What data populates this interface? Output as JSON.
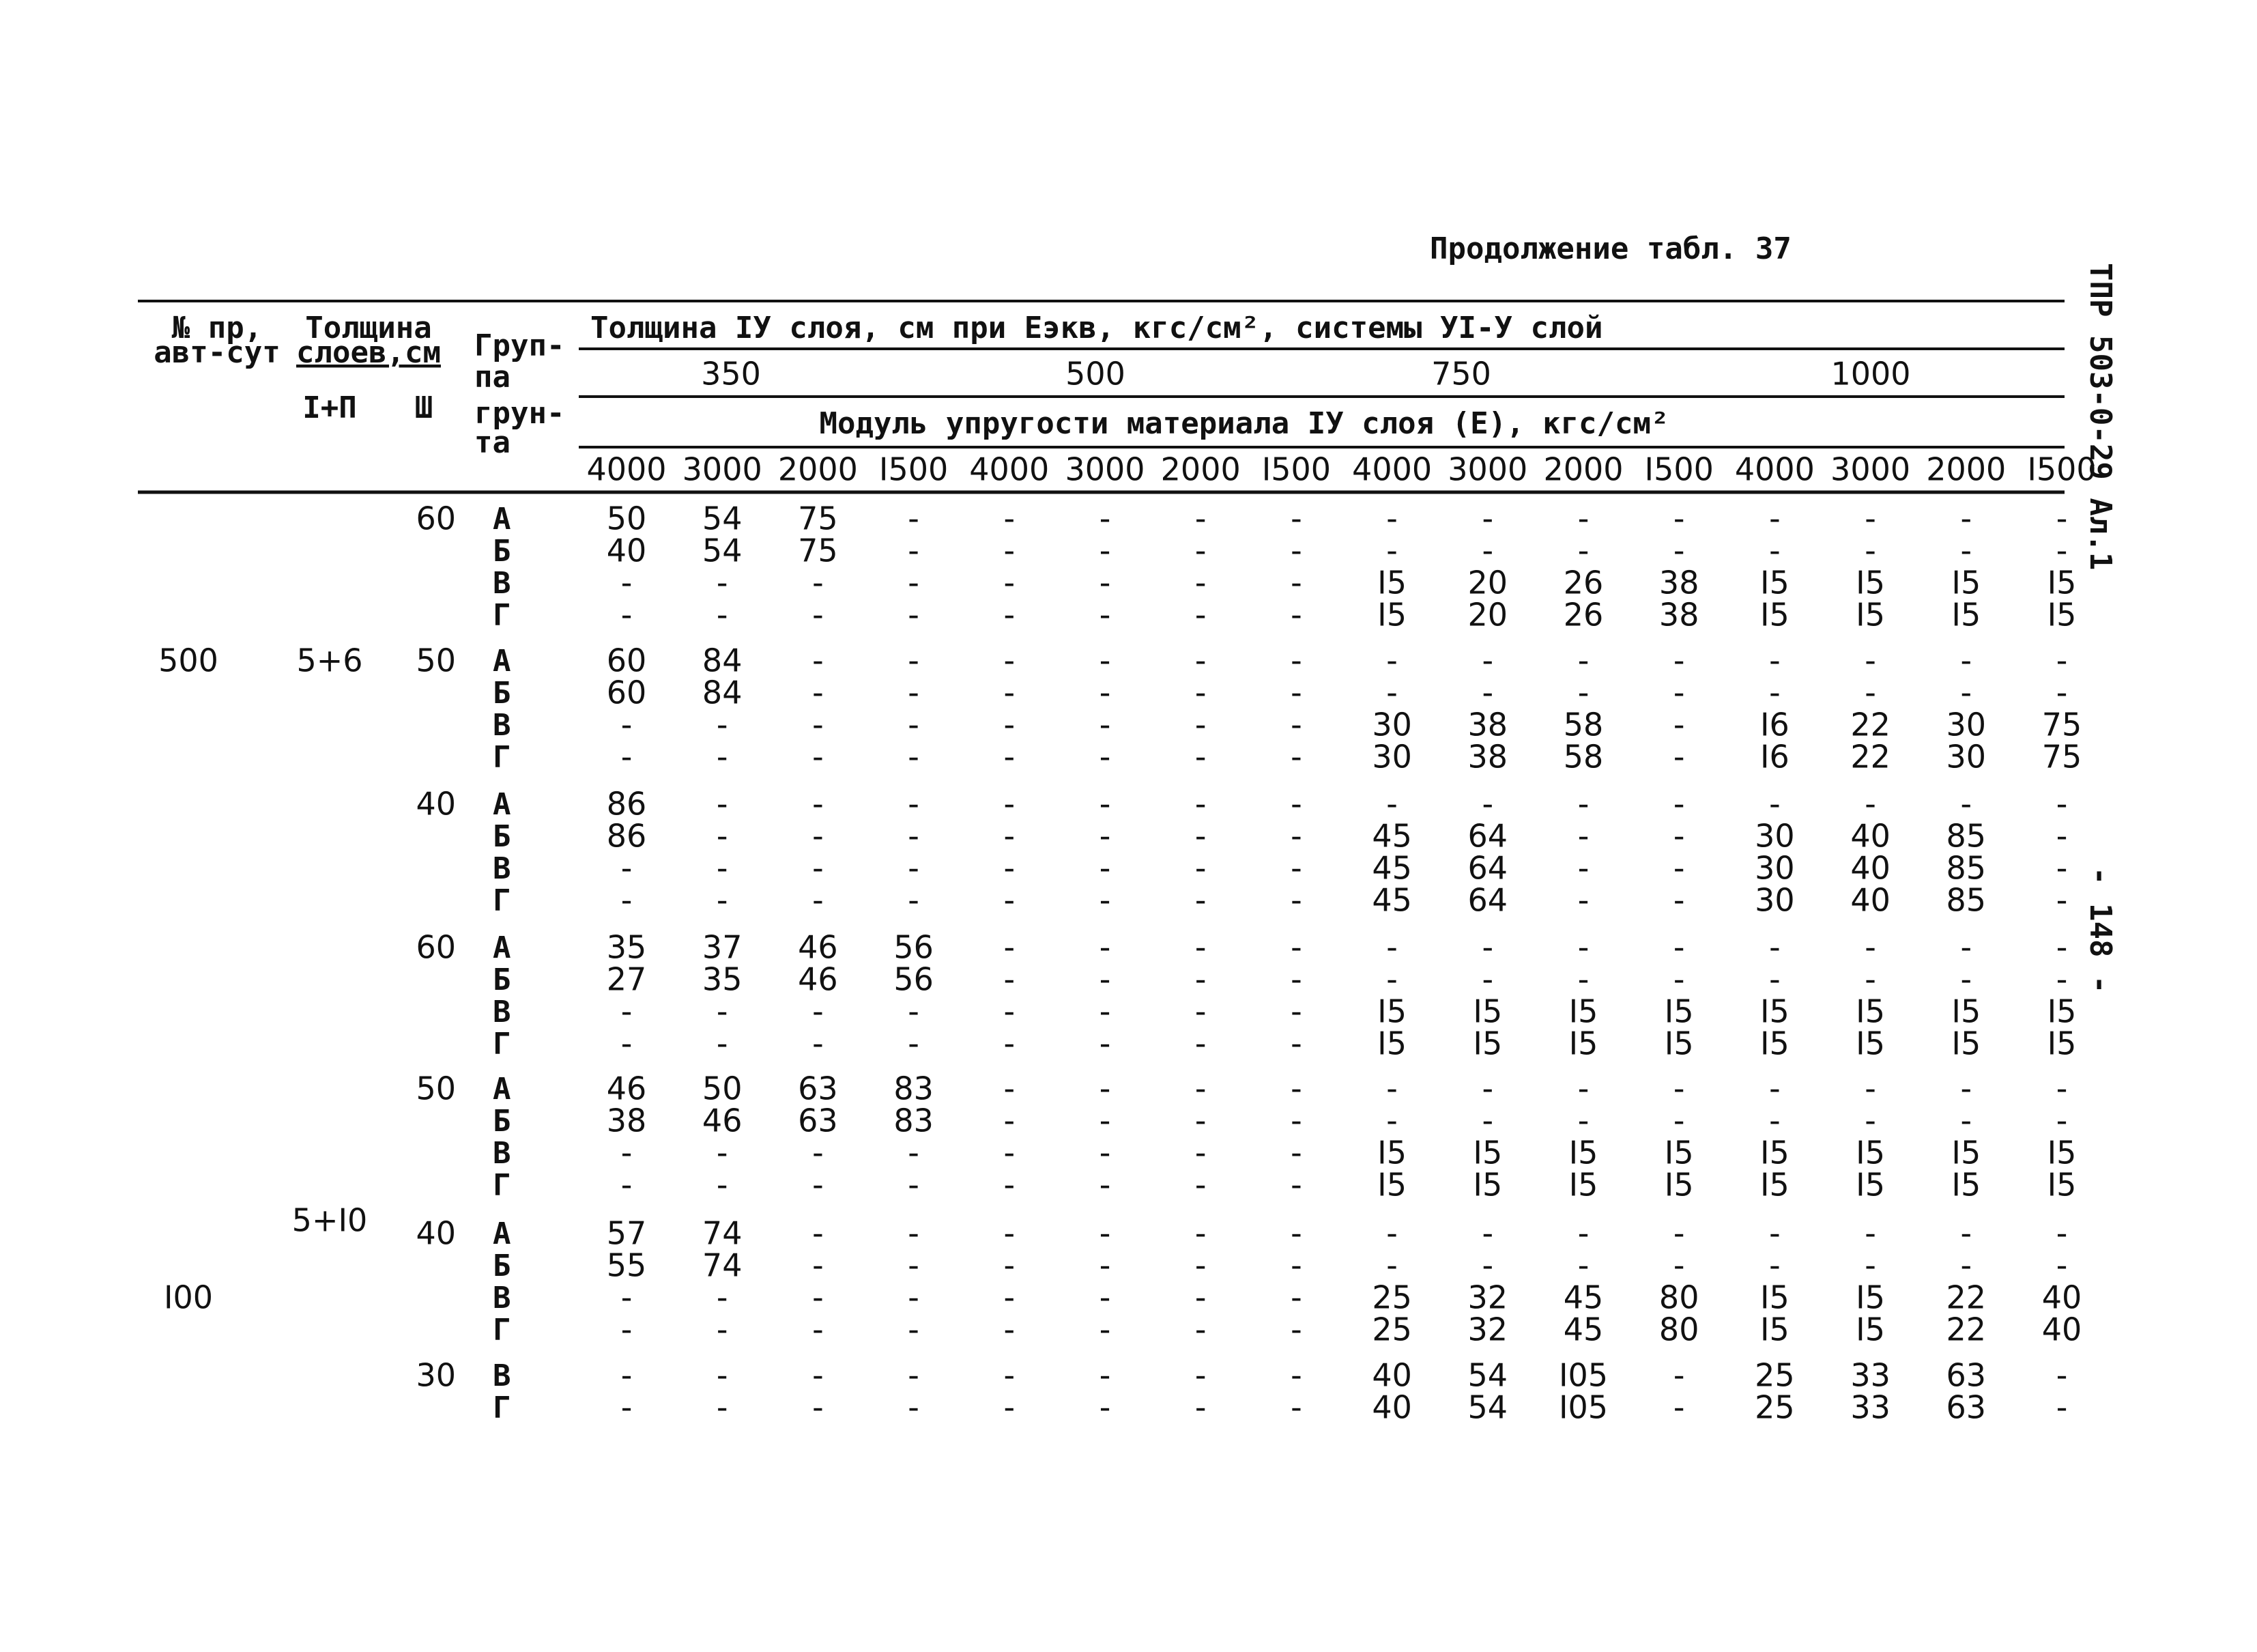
{
  "header": {
    "title": "Продолжение табл. 37",
    "side_code": "ТПР 503-0-29 Ал.1",
    "page_number": "- 148 -"
  },
  "table": {
    "columns": {
      "traffic": [
        "№ пр,",
        "авт-сут"
      ],
      "thickness": [
        "Толщина",
        "слоев,см"
      ],
      "thickness_12": "I+П",
      "thickness_3": "Ш",
      "soil_group": [
        "Груп-",
        "па",
        "грун-",
        "та"
      ],
      "top_header": "Толщина IУ слоя, см при Еэкв, кгс/см², системы УI-У слой",
      "e_equiv": [
        "350",
        "500",
        "750",
        "1000"
      ],
      "modulus_header": "Модуль упругости материала IУ слоя (Е), кгс/см²",
      "modulus": [
        "4000",
        "3000",
        "2000",
        "I500",
        "4000",
        "3000",
        "2000",
        "I500",
        "4000",
        "3000",
        "2000",
        "I500",
        "4000",
        "3000",
        "2000",
        "I500"
      ]
    },
    "blocks": [
      {
        "thickness_3": "60",
        "rows": [
          {
            "group": "А",
            "values": [
              "50",
              "54",
              "75",
              "-",
              "-",
              "-",
              "-",
              "-",
              "-",
              "-",
              "-",
              "-",
              "-",
              "-",
              "-",
              "-"
            ]
          },
          {
            "group": "Б",
            "values": [
              "40",
              "54",
              "75",
              "-",
              "-",
              "-",
              "-",
              "-",
              "-",
              "-",
              "-",
              "-",
              "-",
              "-",
              "-",
              "-"
            ]
          },
          {
            "group": "В",
            "values": [
              "-",
              "-",
              "-",
              "-",
              "-",
              "-",
              "-",
              "-",
              "I5",
              "20",
              "26",
              "38",
              "I5",
              "I5",
              "I5",
              "I5"
            ]
          },
          {
            "group": "Г",
            "values": [
              "-",
              "-",
              "-",
              "-",
              "-",
              "-",
              "-",
              "-",
              "I5",
              "20",
              "26",
              "38",
              "I5",
              "I5",
              "I5",
              "I5"
            ]
          }
        ]
      },
      {
        "traffic": "500",
        "thickness_12": "5+6",
        "thickness_3": "50",
        "rows": [
          {
            "group": "А",
            "values": [
              "60",
              "84",
              "-",
              "-",
              "-",
              "-",
              "-",
              "-",
              "-",
              "-",
              "-",
              "-",
              "-",
              "-",
              "-",
              "-"
            ]
          },
          {
            "group": "Б",
            "values": [
              "60",
              "84",
              "-",
              "-",
              "-",
              "-",
              "-",
              "-",
              "-",
              "-",
              "-",
              "-",
              "-",
              "-",
              "-",
              "-"
            ]
          },
          {
            "group": "В",
            "values": [
              "-",
              "-",
              "-",
              "-",
              "-",
              "-",
              "-",
              "-",
              "30",
              "38",
              "58",
              "-",
              "I6",
              "22",
              "30",
              "75"
            ]
          },
          {
            "group": "Г",
            "values": [
              "-",
              "-",
              "-",
              "-",
              "-",
              "-",
              "-",
              "-",
              "30",
              "38",
              "58",
              "-",
              "I6",
              "22",
              "30",
              "75"
            ]
          }
        ]
      },
      {
        "thickness_3": "40",
        "rows": [
          {
            "group": "А",
            "values": [
              "86",
              "-",
              "-",
              "-",
              "-",
              "-",
              "-",
              "-",
              "-",
              "-",
              "-",
              "-",
              "-",
              "-",
              "-",
              "-"
            ]
          },
          {
            "group": "Б",
            "values": [
              "86",
              "-",
              "-",
              "-",
              "-",
              "-",
              "-",
              "-",
              "45",
              "64",
              "-",
              "-",
              "30",
              "40",
              "85",
              "-"
            ]
          },
          {
            "group": "В",
            "values": [
              "-",
              "-",
              "-",
              "-",
              "-",
              "-",
              "-",
              "-",
              "45",
              "64",
              "-",
              "-",
              "30",
              "40",
              "85",
              "-"
            ]
          },
          {
            "group": "Г",
            "values": [
              "-",
              "-",
              "-",
              "-",
              "-",
              "-",
              "-",
              "-",
              "45",
              "64",
              "-",
              "-",
              "30",
              "40",
              "85",
              "-"
            ]
          }
        ]
      },
      {
        "thickness_3": "60",
        "rows": [
          {
            "group": "А",
            "values": [
              "35",
              "37",
              "46",
              "56",
              "-",
              "-",
              "-",
              "-",
              "-",
              "-",
              "-",
              "-",
              "-",
              "-",
              "-",
              "-"
            ]
          },
          {
            "group": "Б",
            "values": [
              "27",
              "35",
              "46",
              "56",
              "-",
              "-",
              "-",
              "-",
              "-",
              "-",
              "-",
              "-",
              "-",
              "-",
              "-",
              "-"
            ]
          },
          {
            "group": "В",
            "values": [
              "-",
              "-",
              "-",
              "-",
              "-",
              "-",
              "-",
              "-",
              "I5",
              "I5",
              "I5",
              "I5",
              "I5",
              "I5",
              "I5",
              "I5"
            ]
          },
          {
            "group": "Г",
            "values": [
              "-",
              "-",
              "-",
              "-",
              "-",
              "-",
              "-",
              "-",
              "I5",
              "I5",
              "I5",
              "I5",
              "I5",
              "I5",
              "I5",
              "I5"
            ]
          }
        ]
      },
      {
        "thickness_3": "50",
        "rows": [
          {
            "group": "А",
            "values": [
              "46",
              "50",
              "63",
              "83",
              "-",
              "-",
              "-",
              "-",
              "-",
              "-",
              "-",
              "-",
              "-",
              "-",
              "-",
              "-"
            ]
          },
          {
            "group": "Б",
            "values": [
              "38",
              "46",
              "63",
              "83",
              "-",
              "-",
              "-",
              "-",
              "-",
              "-",
              "-",
              "-",
              "-",
              "-",
              "-",
              "-"
            ]
          },
          {
            "group": "В",
            "values": [
              "-",
              "-",
              "-",
              "-",
              "-",
              "-",
              "-",
              "-",
              "I5",
              "I5",
              "I5",
              "I5",
              "I5",
              "I5",
              "I5",
              "I5"
            ]
          },
          {
            "group": "Г",
            "values": [
              "-",
              "-",
              "-",
              "-",
              "-",
              "-",
              "-",
              "-",
              "I5",
              "I5",
              "I5",
              "I5",
              "I5",
              "I5",
              "I5",
              "I5"
            ]
          }
        ]
      },
      {
        "traffic": "I00",
        "thickness_12": "5+I0",
        "thickness_3": "40",
        "rows": [
          {
            "group": "А",
            "values": [
              "57",
              "74",
              "-",
              "-",
              "-",
              "-",
              "-",
              "-",
              "-",
              "-",
              "-",
              "-",
              "-",
              "-",
              "-",
              "-"
            ]
          },
          {
            "group": "Б",
            "values": [
              "55",
              "74",
              "-",
              "-",
              "-",
              "-",
              "-",
              "-",
              "-",
              "-",
              "-",
              "-",
              "-",
              "-",
              "-",
              "-"
            ]
          },
          {
            "group": "В",
            "values": [
              "-",
              "-",
              "-",
              "-",
              "-",
              "-",
              "-",
              "-",
              "25",
              "32",
              "45",
              "80",
              "I5",
              "I5",
              "22",
              "40"
            ]
          },
          {
            "group": "Г",
            "values": [
              "-",
              "-",
              "-",
              "-",
              "-",
              "-",
              "-",
              "-",
              "25",
              "32",
              "45",
              "80",
              "I5",
              "I5",
              "22",
              "40"
            ]
          }
        ]
      },
      {
        "thickness_3": "30",
        "rows": [
          {
            "group": "В",
            "values": [
              "-",
              "-",
              "-",
              "-",
              "-",
              "-",
              "-",
              "-",
              "40",
              "54",
              "I05",
              "-",
              "25",
              "33",
              "63",
              "-"
            ]
          },
          {
            "group": "Г",
            "values": [
              "-",
              "-",
              "-",
              "-",
              "-",
              "-",
              "-",
              "-",
              "40",
              "54",
              "I05",
              "-",
              "25",
              "33",
              "63",
              "-"
            ]
          }
        ]
      }
    ]
  }
}
